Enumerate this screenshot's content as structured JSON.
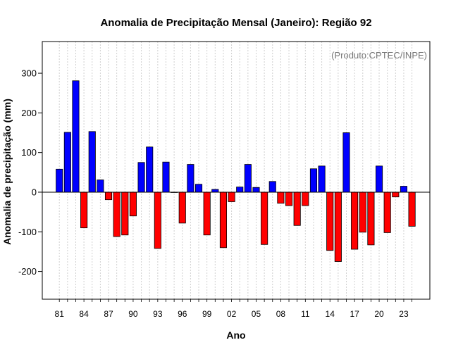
{
  "chart_data": {
    "type": "bar",
    "title": "Anomalia de Precipitação Mensal (Janeiro): Região 92",
    "credit": "(Produto:CPTEC/INPE)",
    "xlabel": "Ano",
    "ylabel": "Anomalia de precipitação (mm)",
    "ylim": [
      -270,
      380
    ],
    "yticks": [
      -200,
      -100,
      0,
      100,
      200,
      300
    ],
    "xticks": [
      "81",
      "84",
      "87",
      "90",
      "93",
      "96",
      "99",
      "02",
      "05",
      "08",
      "11",
      "14",
      "17",
      "20",
      "23"
    ],
    "categories": [
      "1981",
      "1982",
      "1983",
      "1984",
      "1985",
      "1986",
      "1987",
      "1988",
      "1989",
      "1990",
      "1991",
      "1992",
      "1993",
      "1994",
      "1995",
      "1996",
      "1997",
      "1998",
      "1999",
      "2000",
      "2001",
      "2002",
      "2003",
      "2004",
      "2005",
      "2006",
      "2007",
      "2008",
      "2009",
      "2010",
      "2011",
      "2012",
      "2013",
      "2014",
      "2015",
      "2016",
      "2017",
      "2018",
      "2019",
      "2020",
      "2021",
      "2022",
      "2023",
      "2024"
    ],
    "values": [
      58,
      151,
      281,
      -90,
      153,
      31,
      -19,
      -112,
      -108,
      -60,
      75,
      114,
      -142,
      76,
      0,
      -78,
      70,
      20,
      -108,
      7,
      -140,
      -24,
      13,
      70,
      12,
      -132,
      27,
      -28,
      -34,
      -84,
      -34,
      59,
      66,
      -147,
      -175,
      150,
      -144,
      -101,
      -133,
      66,
      -102,
      -12,
      15,
      -86
    ],
    "colors": {
      "positive": "#0000ff",
      "negative": "#ff0000",
      "grid": "#d0d0d0",
      "axis": "#000000"
    },
    "grid": true
  }
}
